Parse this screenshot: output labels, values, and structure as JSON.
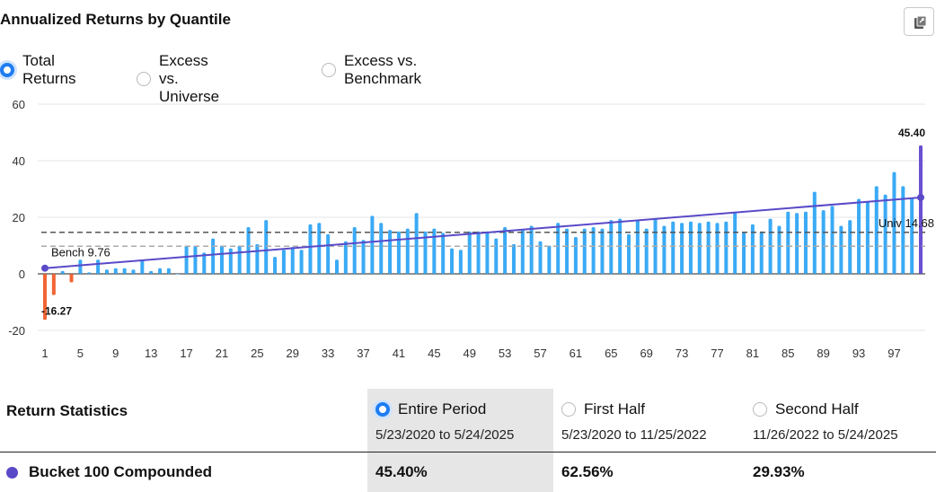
{
  "title": "Annualized Returns by Quantile",
  "export_icon": "export-icon",
  "return_type_options": [
    {
      "label": "Total Returns",
      "checked": true
    },
    {
      "label": "Excess vs. Universe",
      "checked": false
    },
    {
      "label": "Excess vs. Benchmark",
      "checked": false
    }
  ],
  "chart_data": {
    "type": "bar",
    "categories": [
      1,
      2,
      3,
      4,
      5,
      6,
      7,
      8,
      9,
      10,
      11,
      12,
      13,
      14,
      15,
      16,
      17,
      18,
      19,
      20,
      21,
      22,
      23,
      24,
      25,
      26,
      27,
      28,
      29,
      30,
      31,
      32,
      33,
      34,
      35,
      36,
      37,
      38,
      39,
      40,
      41,
      42,
      43,
      44,
      45,
      46,
      47,
      48,
      49,
      50,
      51,
      52,
      53,
      54,
      55,
      56,
      57,
      58,
      59,
      60,
      61,
      62,
      63,
      64,
      65,
      66,
      67,
      68,
      69,
      70,
      71,
      72,
      73,
      74,
      75,
      76,
      77,
      78,
      79,
      80,
      81,
      82,
      83,
      84,
      85,
      86,
      87,
      88,
      89,
      90,
      91,
      92,
      93,
      94,
      95,
      96,
      97,
      98,
      99,
      100
    ],
    "x_tick_labels": [
      1,
      5,
      9,
      13,
      17,
      21,
      25,
      29,
      33,
      37,
      41,
      45,
      49,
      53,
      57,
      61,
      65,
      69,
      73,
      77,
      81,
      85,
      89,
      93,
      97
    ],
    "values": [
      -16.27,
      -7.5,
      1.0,
      -3.0,
      5.0,
      0.5,
      5.0,
      1.5,
      2.0,
      2.0,
      1.5,
      5.0,
      1.0,
      2.0,
      2.0,
      0.0,
      10.0,
      10.0,
      7.5,
      12.5,
      10.0,
      9.0,
      10.0,
      16.5,
      10.5,
      19.0,
      6.0,
      8.5,
      9.5,
      8.5,
      17.5,
      18.0,
      14.0,
      5.0,
      11.5,
      16.5,
      12.0,
      20.5,
      18.0,
      15.5,
      15.0,
      16.0,
      21.5,
      15.0,
      16.0,
      14.5,
      9.0,
      8.5,
      15.0,
      15.0,
      15.0,
      12.5,
      16.5,
      10.5,
      15.5,
      17.0,
      11.5,
      10.0,
      18.0,
      16.0,
      13.0,
      16.0,
      16.5,
      16.0,
      19.0,
      19.5,
      14.0,
      19.0,
      16.0,
      19.5,
      17.0,
      18.5,
      18.0,
      18.5,
      18.0,
      18.5,
      18.0,
      18.5,
      22.0,
      14.5,
      17.5,
      15.0,
      19.5,
      17.0,
      22.0,
      21.5,
      22.0,
      29.0,
      22.5,
      24.0,
      17.0,
      19.0,
      26.5,
      25.5,
      31.0,
      28.0,
      36.0,
      31.0,
      27.0,
      45.4
    ],
    "colors": {
      "positive": "#3aaaf5",
      "negative": "#f26535",
      "highlight": "#6a4fcf",
      "trend": "#5a4ac8"
    },
    "trend_line": {
      "start": [
        1,
        2.0
      ],
      "end": [
        100,
        27.0
      ]
    },
    "reference_lines": [
      {
        "name": "Univ",
        "value": 14.68,
        "label": "Univ 14.68",
        "color": "#555555"
      },
      {
        "name": "Bench",
        "value": 9.76,
        "label": "Bench 9.76",
        "color": "#aaaaaa"
      }
    ],
    "data_labels": [
      {
        "category": 1,
        "text": "-16.27"
      },
      {
        "category": 100,
        "text": "45.40"
      }
    ],
    "y_ticks": [
      60,
      40,
      20,
      0,
      -20
    ],
    "ylim": [
      -20,
      60
    ],
    "grid": "horizontal",
    "title": "",
    "xlabel": "",
    "ylabel": ""
  },
  "stats": {
    "title": "Return Statistics",
    "periods": [
      {
        "label": "Entire Period",
        "range": "5/23/2020 to 5/24/2025",
        "checked": true
      },
      {
        "label": "First Half",
        "range": "5/23/2020 to 11/25/2022",
        "checked": false
      },
      {
        "label": "Second Half",
        "range": "11/26/2022 to 5/24/2025",
        "checked": false
      }
    ],
    "row": {
      "label": "Bucket 100 Compounded",
      "values": [
        "45.40%",
        "62.56%",
        "29.93%"
      ],
      "dot_color": "#5a4ac8"
    }
  }
}
